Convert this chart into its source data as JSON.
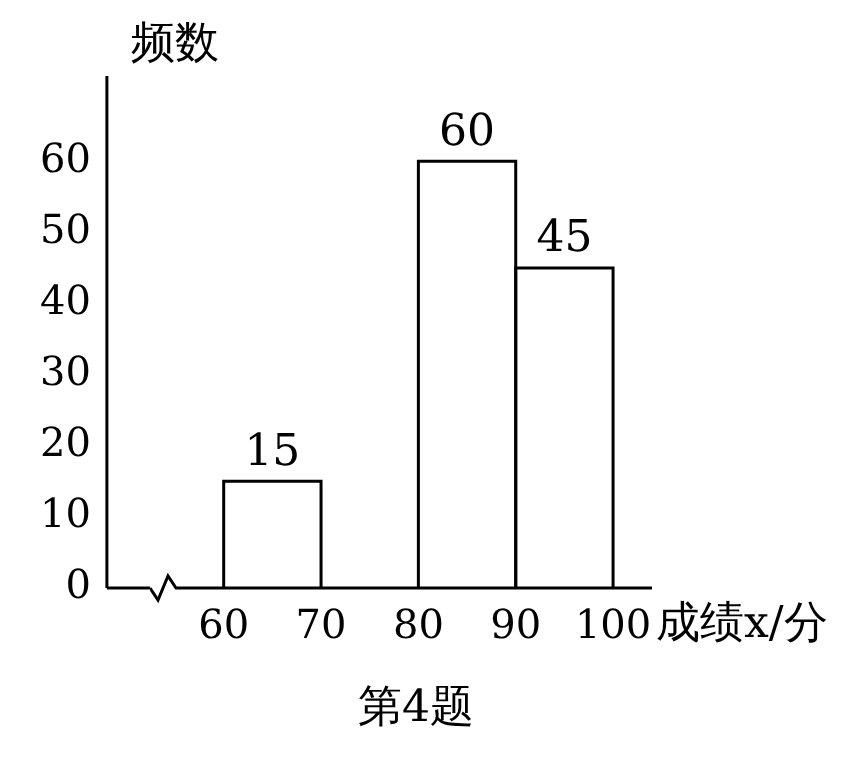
{
  "chart_data": {
    "type": "histogram",
    "xlabel": "成绩x/分",
    "ylabel": "频数",
    "annotations": [
      "第4题"
    ],
    "bins": [
      60,
      70,
      80,
      90,
      100
    ],
    "values": [
      15,
      null,
      60,
      45
    ],
    "color": "#ffffff",
    "data_labels": true,
    "xlim": [
      48,
      104
    ],
    "xticks": [
      60,
      70,
      80,
      90,
      100
    ],
    "ylim": [
      0,
      72
    ],
    "yticks": [
      0,
      10,
      20,
      30,
      40,
      50,
      60
    ],
    "grid": false,
    "legend": false
  }
}
